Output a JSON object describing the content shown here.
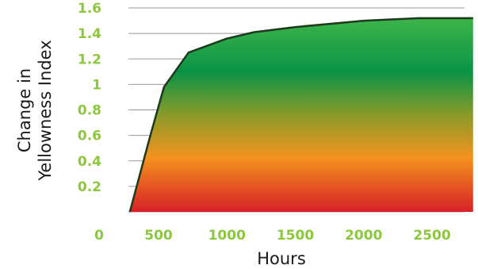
{
  "chart_data": {
    "type": "area",
    "title": "",
    "xlabel": "Hours",
    "ylabel": "Change in Yellowness Index",
    "ylabel_lines": [
      "Change in",
      "Yellowness Index"
    ],
    "x_ticks": [
      0,
      500,
      1000,
      1500,
      2000,
      2500
    ],
    "y_ticks": [
      0.2,
      0.4,
      0.6,
      0.8,
      1,
      1.2,
      1.4,
      1.6
    ],
    "xlim": [
      0,
      2800
    ],
    "ylim": [
      0,
      1.6
    ],
    "grid": true,
    "series": [
      {
        "x": [
          290,
          440,
          540,
          720,
          1000,
          1200,
          1500,
          2000,
          2400,
          2800
        ],
        "y": [
          0,
          0.6,
          0.98,
          1.25,
          1.36,
          1.41,
          1.45,
          1.5,
          1.52,
          1.52
        ]
      }
    ],
    "colors": {
      "tick_labels": "#8dc63f",
      "grid": "#999999",
      "outline": "#1d3a1d",
      "gradient": [
        "#3cb44a",
        "#0a9346",
        "#f4921e",
        "#d72127"
      ]
    }
  }
}
